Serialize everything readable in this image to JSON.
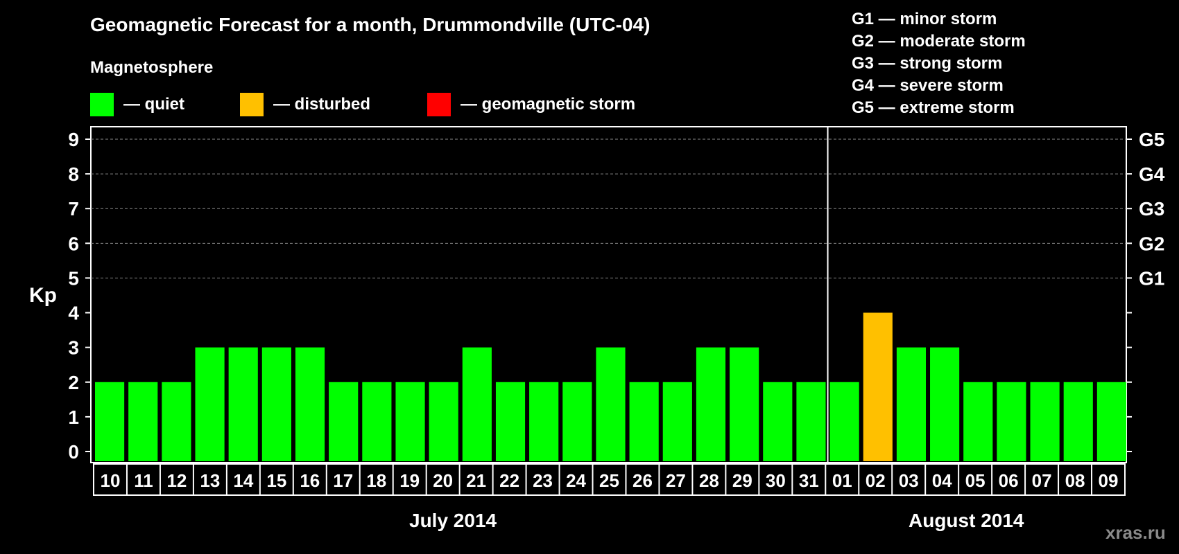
{
  "title": "Geomagnetic Forecast for a month, Drummondville (UTC-04)",
  "subtitle": "Magnetosphere",
  "legend": [
    {
      "label": "— quiet",
      "color": "#00ff00"
    },
    {
      "label": "— disturbed",
      "color": "#ffc000"
    },
    {
      "label": "— geomagnetic storm",
      "color": "#ff0000"
    }
  ],
  "storm_scale": [
    "G1 — minor storm",
    "G2 — moderate storm",
    "G3 — strong storm",
    "G4 — severe storm",
    "G5 — extreme storm"
  ],
  "months": [
    "July 2014",
    "August 2014"
  ],
  "watermark": "xras.ru",
  "chart_data": {
    "type": "bar",
    "ylabel": "Kp",
    "ylim": [
      0,
      9
    ],
    "yticks": [
      0,
      1,
      2,
      3,
      4,
      5,
      6,
      7,
      8,
      9
    ],
    "right_ticks": [
      {
        "value": 5,
        "label": "G1"
      },
      {
        "value": 6,
        "label": "G2"
      },
      {
        "value": 7,
        "label": "G3"
      },
      {
        "value": 8,
        "label": "G4"
      },
      {
        "value": 9,
        "label": "G5"
      }
    ],
    "grid_lines": [
      5,
      6,
      7,
      8,
      9
    ],
    "categories": [
      "10",
      "11",
      "12",
      "13",
      "14",
      "15",
      "16",
      "17",
      "18",
      "19",
      "20",
      "21",
      "22",
      "23",
      "24",
      "25",
      "26",
      "27",
      "28",
      "29",
      "30",
      "31",
      "01",
      "02",
      "03",
      "04",
      "05",
      "06",
      "07",
      "08",
      "09"
    ],
    "values": [
      2,
      2,
      2,
      3,
      3,
      3,
      3,
      2,
      2,
      2,
      2,
      3,
      2,
      2,
      2,
      3,
      2,
      2,
      3,
      3,
      2,
      2,
      2,
      4,
      3,
      3,
      2,
      2,
      2,
      2,
      2
    ],
    "status": [
      "quiet",
      "quiet",
      "quiet",
      "quiet",
      "quiet",
      "quiet",
      "quiet",
      "quiet",
      "quiet",
      "quiet",
      "quiet",
      "quiet",
      "quiet",
      "quiet",
      "quiet",
      "quiet",
      "quiet",
      "quiet",
      "quiet",
      "quiet",
      "quiet",
      "quiet",
      "quiet",
      "disturbed",
      "quiet",
      "quiet",
      "quiet",
      "quiet",
      "quiet",
      "quiet",
      "quiet"
    ],
    "status_colors": {
      "quiet": "#00ff00",
      "disturbed": "#ffc000",
      "storm": "#ff0000"
    },
    "month_split_after": "31"
  }
}
